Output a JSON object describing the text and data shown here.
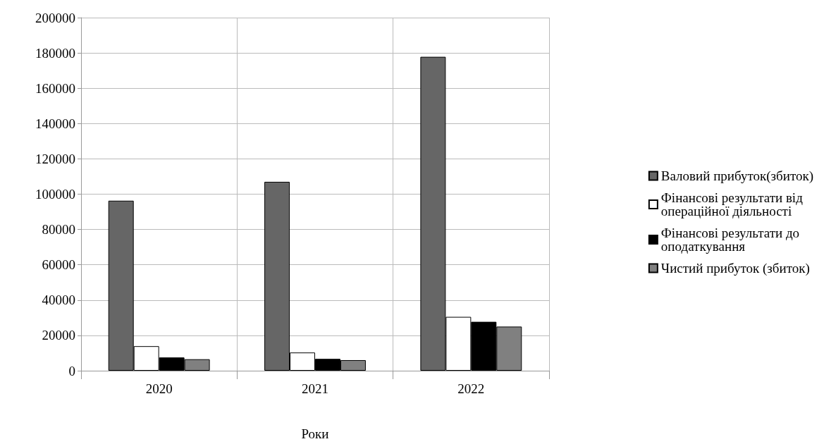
{
  "chart_data": {
    "type": "bar",
    "xlabel": "Роки",
    "categories": [
      "2020",
      "2021",
      "2022"
    ],
    "series": [
      {
        "name": "Валовий прибуток(збиток)",
        "color": "#666666",
        "values": [
          96300,
          107000,
          177800
        ]
      },
      {
        "name": "Фінансові результати від операційної діяльності",
        "color": "#ffffff",
        "values": [
          13900,
          10300,
          30500
        ]
      },
      {
        "name": "Фінансові результати до оподаткування",
        "color": "#000000",
        "values": [
          7500,
          6700,
          27700
        ]
      },
      {
        "name": "Чистий прибуток (збиток)",
        "color": "#808080",
        "values": [
          6500,
          6000,
          25000
        ]
      }
    ],
    "ylim": [
      0,
      200000
    ],
    "yticks": [
      0,
      20000,
      40000,
      60000,
      80000,
      100000,
      120000,
      140000,
      160000,
      180000,
      200000
    ],
    "grid": true,
    "legend": "right"
  }
}
